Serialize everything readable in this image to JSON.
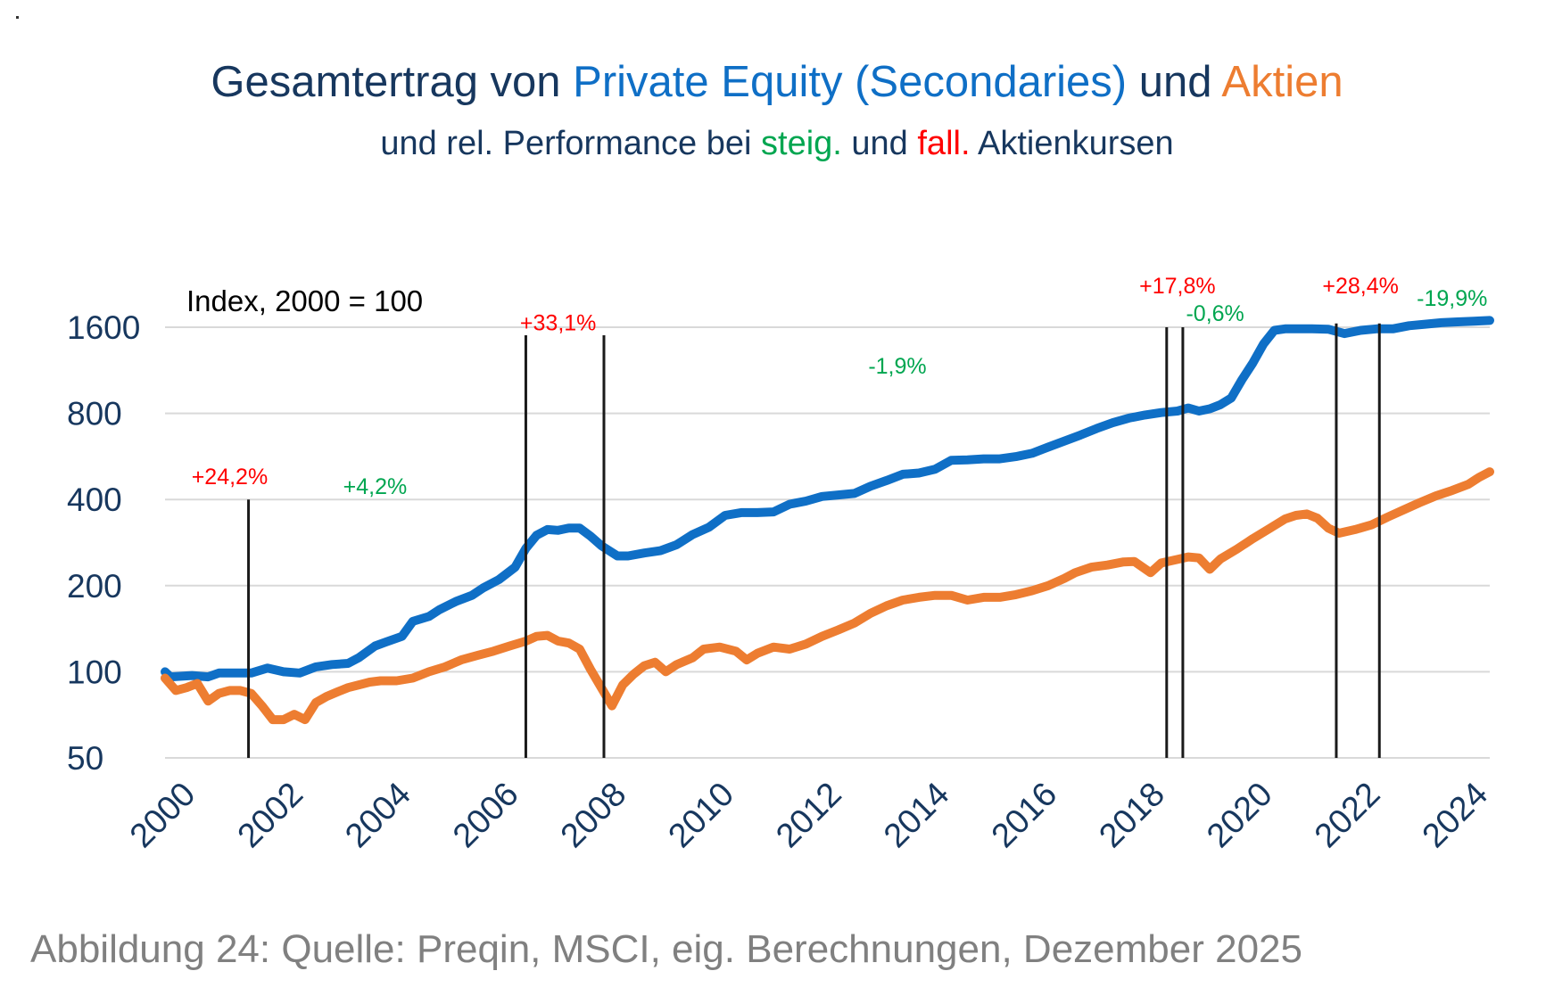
{
  "title": {
    "part1": "Gesamtertrag von ",
    "part2": "Private Equity (Secondaries)",
    "part3": " und ",
    "part4": "Aktien"
  },
  "subtitle": {
    "part1": "und rel. Performance bei ",
    "part2": "steig.",
    "part3": " und ",
    "part4": "fall.",
    "part5": " Aktienkursen"
  },
  "caption": "Abbildung 24: Quelle: Preqin, MSCI, eig. Berechnungen, Dezember 2025",
  "colors": {
    "title": "#17375e",
    "pe": "#0f6fc6",
    "stocks": "#ed7d31",
    "rising": "#00a650",
    "falling": "#ff0000",
    "grid": "#d9d9d9",
    "axis": "#17375e",
    "marker": "#1a1a1a"
  },
  "chart_data": {
    "type": "line",
    "scale": "log2",
    "index_label": "Index, 2000 = 100",
    "ylim": [
      50,
      1600
    ],
    "y_ticks": [
      {
        "value": 50,
        "label": "50"
      },
      {
        "value": 100,
        "label": "100"
      },
      {
        "value": 200,
        "label": "200"
      },
      {
        "value": 400,
        "label": "400"
      },
      {
        "value": 800,
        "label": "800"
      },
      {
        "value": 1600,
        "label": "1600"
      }
    ],
    "xlim": [
      2000,
      2024.6
    ],
    "x_ticks": [
      {
        "value": 2000,
        "label": "2000"
      },
      {
        "value": 2002,
        "label": "2002"
      },
      {
        "value": 2004,
        "label": "2004"
      },
      {
        "value": 2006,
        "label": "2006"
      },
      {
        "value": 2008,
        "label": "2008"
      },
      {
        "value": 2010,
        "label": "2010"
      },
      {
        "value": 2012,
        "label": "2012"
      },
      {
        "value": 2014,
        "label": "2014"
      },
      {
        "value": 2016,
        "label": "2016"
      },
      {
        "value": 2018,
        "label": "2018"
      },
      {
        "value": 2020,
        "label": "2020"
      },
      {
        "value": 2022,
        "label": "2022"
      },
      {
        "value": 2024,
        "label": "2024"
      }
    ],
    "series": [
      {
        "name": "Private Equity (Secondaries)",
        "color": "#0f6fc6",
        "points": [
          [
            2000.0,
            100
          ],
          [
            2000.1,
            96
          ],
          [
            2000.5,
            97
          ],
          [
            2000.8,
            96
          ],
          [
            2001.0,
            99
          ],
          [
            2001.3,
            99
          ],
          [
            2001.6,
            99
          ],
          [
            2001.9,
            103
          ],
          [
            2002.2,
            100
          ],
          [
            2002.5,
            99
          ],
          [
            2002.8,
            104
          ],
          [
            2003.1,
            106
          ],
          [
            2003.4,
            107
          ],
          [
            2003.6,
            112
          ],
          [
            2003.9,
            123
          ],
          [
            2004.1,
            127
          ],
          [
            2004.4,
            133
          ],
          [
            2004.6,
            150
          ],
          [
            2004.9,
            156
          ],
          [
            2005.1,
            165
          ],
          [
            2005.4,
            176
          ],
          [
            2005.7,
            185
          ],
          [
            2005.9,
            196
          ],
          [
            2006.2,
            210
          ],
          [
            2006.5,
            232
          ],
          [
            2006.7,
            270
          ],
          [
            2006.9,
            300
          ],
          [
            2007.1,
            314
          ],
          [
            2007.3,
            312
          ],
          [
            2007.5,
            318
          ],
          [
            2007.7,
            318
          ],
          [
            2007.9,
            298
          ],
          [
            2008.1,
            276
          ],
          [
            2008.4,
            254
          ],
          [
            2008.6,
            254
          ],
          [
            2008.9,
            260
          ],
          [
            2009.2,
            265
          ],
          [
            2009.5,
            278
          ],
          [
            2009.8,
            302
          ],
          [
            2010.1,
            320
          ],
          [
            2010.4,
            352
          ],
          [
            2010.7,
            360
          ],
          [
            2011.0,
            360
          ],
          [
            2011.3,
            362
          ],
          [
            2011.6,
            385
          ],
          [
            2011.9,
            395
          ],
          [
            2012.2,
            410
          ],
          [
            2012.5,
            415
          ],
          [
            2012.8,
            420
          ],
          [
            2013.1,
            445
          ],
          [
            2013.4,
            466
          ],
          [
            2013.7,
            490
          ],
          [
            2014.0,
            495
          ],
          [
            2014.3,
            510
          ],
          [
            2014.6,
            548
          ],
          [
            2014.9,
            550
          ],
          [
            2015.2,
            555
          ],
          [
            2015.5,
            555
          ],
          [
            2015.8,
            565
          ],
          [
            2016.1,
            580
          ],
          [
            2016.4,
            610
          ],
          [
            2016.7,
            640
          ],
          [
            2017.0,
            672
          ],
          [
            2017.3,
            708
          ],
          [
            2017.6,
            742
          ],
          [
            2017.9,
            770
          ],
          [
            2018.2,
            790
          ],
          [
            2018.5,
            805
          ],
          [
            2018.8,
            815
          ],
          [
            2019.0,
            835
          ],
          [
            2019.2,
            815
          ],
          [
            2019.4,
            830
          ],
          [
            2019.6,
            858
          ],
          [
            2019.8,
            905
          ],
          [
            2020.0,
            1050
          ],
          [
            2020.2,
            1200
          ],
          [
            2020.4,
            1400
          ],
          [
            2020.6,
            1560
          ],
          [
            2020.8,
            1580
          ],
          [
            2021.0,
            1580
          ],
          [
            2021.3,
            1580
          ],
          [
            2021.6,
            1575
          ],
          [
            2021.9,
            1520
          ],
          [
            2022.2,
            1560
          ],
          [
            2022.5,
            1580
          ],
          [
            2022.8,
            1580
          ],
          [
            2023.1,
            1620
          ],
          [
            2023.4,
            1640
          ],
          [
            2023.7,
            1660
          ],
          [
            2024.0,
            1670
          ],
          [
            2024.3,
            1680
          ],
          [
            2024.6,
            1690
          ]
        ]
      },
      {
        "name": "Aktien",
        "color": "#ed7d31",
        "points": [
          [
            2000.0,
            95
          ],
          [
            2000.2,
            86
          ],
          [
            2000.4,
            88
          ],
          [
            2000.6,
            91
          ],
          [
            2000.8,
            79
          ],
          [
            2001.0,
            84
          ],
          [
            2001.2,
            86
          ],
          [
            2001.4,
            86
          ],
          [
            2001.6,
            84
          ],
          [
            2001.8,
            76
          ],
          [
            2002.0,
            68
          ],
          [
            2002.2,
            68
          ],
          [
            2002.4,
            71
          ],
          [
            2002.6,
            68
          ],
          [
            2002.8,
            78
          ],
          [
            2003.0,
            82
          ],
          [
            2003.2,
            85
          ],
          [
            2003.4,
            88
          ],
          [
            2003.6,
            90
          ],
          [
            2003.8,
            92
          ],
          [
            2004.0,
            93
          ],
          [
            2004.3,
            93
          ],
          [
            2004.6,
            95
          ],
          [
            2004.9,
            100
          ],
          [
            2005.2,
            104
          ],
          [
            2005.5,
            110
          ],
          [
            2005.8,
            114
          ],
          [
            2006.1,
            118
          ],
          [
            2006.4,
            123
          ],
          [
            2006.7,
            128
          ],
          [
            2006.9,
            133
          ],
          [
            2007.1,
            134
          ],
          [
            2007.3,
            128
          ],
          [
            2007.5,
            126
          ],
          [
            2007.7,
            120
          ],
          [
            2007.9,
            102
          ],
          [
            2008.1,
            88
          ],
          [
            2008.3,
            76
          ],
          [
            2008.5,
            90
          ],
          [
            2008.7,
            98
          ],
          [
            2008.9,
            105
          ],
          [
            2009.1,
            108
          ],
          [
            2009.3,
            100
          ],
          [
            2009.5,
            106
          ],
          [
            2009.8,
            112
          ],
          [
            2010.0,
            120
          ],
          [
            2010.3,
            122
          ],
          [
            2010.6,
            118
          ],
          [
            2010.8,
            110
          ],
          [
            2011.0,
            116
          ],
          [
            2011.3,
            122
          ],
          [
            2011.6,
            120
          ],
          [
            2011.9,
            125
          ],
          [
            2012.2,
            133
          ],
          [
            2012.5,
            140
          ],
          [
            2012.8,
            148
          ],
          [
            2013.1,
            160
          ],
          [
            2013.4,
            170
          ],
          [
            2013.7,
            178
          ],
          [
            2014.0,
            182
          ],
          [
            2014.3,
            185
          ],
          [
            2014.6,
            185
          ],
          [
            2014.9,
            178
          ],
          [
            2015.2,
            182
          ],
          [
            2015.5,
            182
          ],
          [
            2015.8,
            186
          ],
          [
            2016.1,
            192
          ],
          [
            2016.4,
            200
          ],
          [
            2016.7,
            212
          ],
          [
            2016.9,
            222
          ],
          [
            2017.2,
            232
          ],
          [
            2017.5,
            236
          ],
          [
            2017.8,
            242
          ],
          [
            2018.0,
            243
          ],
          [
            2018.3,
            222
          ],
          [
            2018.5,
            240
          ],
          [
            2018.8,
            247
          ],
          [
            2019.0,
            252
          ],
          [
            2019.2,
            250
          ],
          [
            2019.4,
            228
          ],
          [
            2019.6,
            248
          ],
          [
            2019.9,
            268
          ],
          [
            2020.2,
            292
          ],
          [
            2020.5,
            316
          ],
          [
            2020.8,
            342
          ],
          [
            2021.0,
            352
          ],
          [
            2021.2,
            356
          ],
          [
            2021.4,
            344
          ],
          [
            2021.6,
            318
          ],
          [
            2021.8,
            305
          ],
          [
            2022.1,
            314
          ],
          [
            2022.4,
            326
          ],
          [
            2022.7,
            347
          ],
          [
            2023.0,
            368
          ],
          [
            2023.3,
            390
          ],
          [
            2023.6,
            412
          ],
          [
            2023.9,
            430
          ],
          [
            2024.2,
            452
          ],
          [
            2024.4,
            478
          ],
          [
            2024.6,
            500
          ]
        ]
      }
    ],
    "markers": [
      {
        "x": 2001.55,
        "top": 400
      },
      {
        "x": 2006.7,
        "top": 1500
      },
      {
        "x": 2008.15,
        "top": 1500
      },
      {
        "x": 2018.6,
        "top": 1600
      },
      {
        "x": 2018.9,
        "top": 1600
      },
      {
        "x": 2021.75,
        "top": 1650
      },
      {
        "x": 2022.55,
        "top": 1650
      }
    ],
    "annotations": [
      {
        "text": "+24,2%",
        "x": 2001.2,
        "y": 453,
        "trend": "falling"
      },
      {
        "text": "+4,2%",
        "x": 2003.9,
        "y": 418,
        "trend": "rising"
      },
      {
        "text": "+33,1%",
        "x": 2007.3,
        "y": 1560,
        "trend": "falling"
      },
      {
        "text": "-1,9%",
        "x": 2013.6,
        "y": 1100,
        "trend": "rising"
      },
      {
        "text": "+17,8%",
        "x": 2018.8,
        "y": 2100,
        "trend": "falling"
      },
      {
        "text": "-0,6%",
        "x": 2019.5,
        "y": 1680,
        "trend": "rising"
      },
      {
        "text": "+28,4%",
        "x": 2022.2,
        "y": 2100,
        "trend": "falling"
      },
      {
        "text": "-19,9%",
        "x": 2023.9,
        "y": 1900,
        "trend": "rising"
      }
    ]
  }
}
